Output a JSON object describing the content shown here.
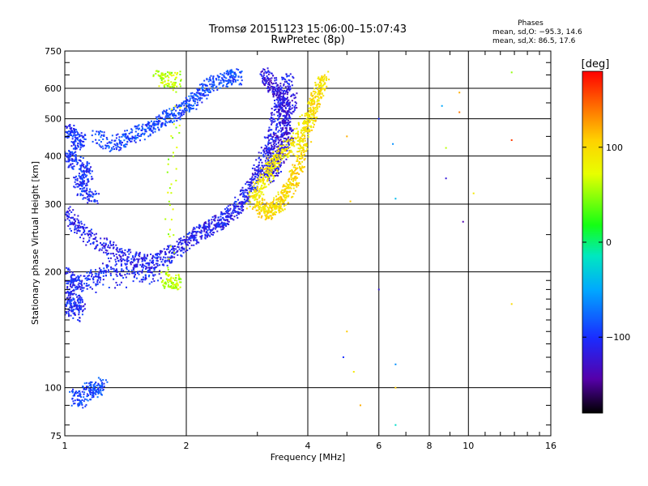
{
  "chart_data": {
    "type": "scatter",
    "title": "Tromsø 20151123 15:06:00–15:07:43",
    "subtitle": "RwPretec (8p)",
    "xlabel": "Frequency [MHz]",
    "ylabel": "Stationary phase Virtual Height [km]",
    "x_scale": "log",
    "y_scale": "log",
    "xlim": [
      1,
      16
    ],
    "ylim": [
      75,
      750
    ],
    "x_ticks": [
      1,
      2,
      4,
      6,
      8,
      10,
      16
    ],
    "x_tick_labels": [
      "1",
      "2",
      "4",
      "6",
      "8",
      "10",
      "16"
    ],
    "y_ticks": [
      75,
      100,
      200,
      300,
      400,
      500,
      600,
      750
    ],
    "y_tick_labels": [
      "75",
      "100",
      "200",
      "300",
      "400",
      "500",
      "600",
      "750"
    ],
    "grid": true,
    "phase_box": {
      "title": "Phases",
      "line_o": "mean, sd,O: −95.3, 14.6",
      "line_x": "mean, sd,X:  86.5, 17.6"
    },
    "colorbar": {
      "label": "[deg]",
      "range": [
        -180,
        180
      ],
      "ticks": [
        100,
        0,
        -100
      ],
      "tick_labels": [
        "100",
        "0",
        "−100"
      ]
    },
    "traces": [
      {
        "phase": -100,
        "points": [
          [
            1.0,
            470
          ],
          [
            1.05,
            455
          ],
          [
            1.1,
            440
          ],
          [
            1.05,
            410
          ],
          [
            1.0,
            390
          ],
          [
            1.1,
            380
          ],
          [
            1.15,
            360
          ],
          [
            1.08,
            340
          ],
          [
            1.12,
            320
          ],
          [
            1.2,
            305
          ]
        ]
      },
      {
        "phase": -110,
        "points": [
          [
            1.0,
            290
          ],
          [
            1.05,
            270
          ],
          [
            1.1,
            255
          ],
          [
            1.2,
            240
          ],
          [
            1.3,
            228
          ],
          [
            1.4,
            220
          ],
          [
            1.5,
            215
          ],
          [
            1.6,
            212
          ],
          [
            1.7,
            214
          ],
          [
            1.8,
            220
          ],
          [
            1.9,
            228
          ],
          [
            2.0,
            238
          ],
          [
            2.1,
            248
          ],
          [
            2.2,
            255
          ],
          [
            2.3,
            262
          ],
          [
            2.4,
            268
          ],
          [
            2.5,
            275
          ],
          [
            2.6,
            285
          ],
          [
            2.7,
            298
          ],
          [
            2.8,
            315
          ],
          [
            2.9,
            335
          ],
          [
            3.0,
            360
          ],
          [
            3.1,
            390
          ],
          [
            3.2,
            430
          ],
          [
            3.3,
            480
          ],
          [
            3.4,
            540
          ],
          [
            3.5,
            600
          ],
          [
            3.6,
            640
          ]
        ]
      },
      {
        "phase": -105,
        "points": [
          [
            1.0,
            200
          ],
          [
            1.05,
            190
          ],
          [
            1.1,
            185
          ],
          [
            1.2,
            196
          ],
          [
            1.3,
            205
          ],
          [
            1.5,
            200
          ],
          [
            1.7,
            195
          ],
          [
            1.0,
            180
          ],
          [
            1.05,
            170
          ],
          [
            1.1,
            165
          ],
          [
            1.0,
            160
          ],
          [
            1.1,
            155
          ]
        ]
      },
      {
        "phase": -90,
        "points": [
          [
            1.2,
            450
          ],
          [
            1.3,
            430
          ],
          [
            1.4,
            440
          ],
          [
            1.5,
            455
          ],
          [
            1.6,
            470
          ],
          [
            1.7,
            490
          ],
          [
            1.8,
            505
          ],
          [
            1.9,
            520
          ],
          [
            2.0,
            540
          ],
          [
            2.1,
            560
          ],
          [
            2.2,
            585
          ],
          [
            2.3,
            615
          ],
          [
            2.5,
            630
          ],
          [
            2.6,
            645
          ],
          [
            2.7,
            640
          ]
        ]
      },
      {
        "phase": -120,
        "points": [
          [
            3.1,
            650
          ],
          [
            3.2,
            630
          ],
          [
            3.3,
            600
          ],
          [
            3.4,
            570
          ],
          [
            3.5,
            540
          ],
          [
            3.5,
            500
          ],
          [
            3.6,
            460
          ],
          [
            3.5,
            420
          ],
          [
            3.4,
            390
          ],
          [
            3.3,
            370
          ],
          [
            3.2,
            355
          ],
          [
            3.3,
            410
          ],
          [
            3.4,
            450
          ],
          [
            3.6,
            520
          ],
          [
            3.7,
            580
          ]
        ]
      },
      {
        "phase": 100,
        "points": [
          [
            3.0,
            300
          ],
          [
            3.1,
            290
          ],
          [
            3.2,
            285
          ],
          [
            3.3,
            290
          ],
          [
            3.4,
            300
          ],
          [
            3.5,
            315
          ],
          [
            3.6,
            330
          ],
          [
            3.7,
            350
          ],
          [
            3.8,
            380
          ],
          [
            3.9,
            420
          ],
          [
            4.0,
            470
          ],
          [
            4.1,
            520
          ],
          [
            4.2,
            570
          ],
          [
            4.3,
            610
          ],
          [
            4.4,
            640
          ]
        ]
      },
      {
        "phase": 90,
        "points": [
          [
            2.9,
            305
          ],
          [
            3.0,
            325
          ],
          [
            3.1,
            345
          ],
          [
            3.2,
            365
          ],
          [
            3.3,
            385
          ],
          [
            3.4,
            400
          ],
          [
            3.6,
            420
          ],
          [
            3.8,
            450
          ],
          [
            4.0,
            500
          ],
          [
            4.2,
            560
          ]
        ]
      },
      {
        "phase": -90,
        "points": [
          [
            1.05,
            95
          ],
          [
            1.1,
            92
          ],
          [
            1.15,
            100
          ],
          [
            1.2,
            98
          ],
          [
            1.25,
            103
          ]
        ]
      },
      {
        "phase": 60,
        "points": [
          [
            1.7,
            640
          ],
          [
            1.8,
            630
          ],
          [
            1.9,
            635
          ],
          [
            1.8,
            190
          ],
          [
            1.9,
            188
          ],
          [
            1.75,
            192
          ]
        ]
      }
    ],
    "scattered": [
      {
        "f": 5.0,
        "h": 140,
        "phase": 110
      },
      {
        "f": 4.9,
        "h": 120,
        "phase": -100
      },
      {
        "f": 5.2,
        "h": 110,
        "phase": 90
      },
      {
        "f": 6.0,
        "h": 500,
        "phase": -100
      },
      {
        "f": 6.0,
        "h": 180,
        "phase": -120
      },
      {
        "f": 6.5,
        "h": 430,
        "phase": -60
      },
      {
        "f": 6.6,
        "h": 310,
        "phase": -40
      },
      {
        "f": 6.6,
        "h": 115,
        "phase": -60
      },
      {
        "f": 6.6,
        "h": 100,
        "phase": 110
      },
      {
        "f": 6.6,
        "h": 80,
        "phase": -20
      },
      {
        "f": 8.6,
        "h": 540,
        "phase": -50
      },
      {
        "f": 8.8,
        "h": 420,
        "phase": 60
      },
      {
        "f": 8.8,
        "h": 350,
        "phase": -120
      },
      {
        "f": 9.5,
        "h": 585,
        "phase": 120
      },
      {
        "f": 9.5,
        "h": 520,
        "phase": 140
      },
      {
        "f": 9.7,
        "h": 270,
        "phase": -140
      },
      {
        "f": 10.3,
        "h": 320,
        "phase": 90
      },
      {
        "f": 12.8,
        "h": 660,
        "phase": 50
      },
      {
        "f": 12.8,
        "h": 440,
        "phase": 160
      },
      {
        "f": 12.8,
        "h": 165,
        "phase": 100
      },
      {
        "f": 5.0,
        "h": 450,
        "phase": 120
      },
      {
        "f": 5.1,
        "h": 305,
        "phase": 110
      },
      {
        "f": 5.4,
        "h": 90,
        "phase": 120
      }
    ]
  }
}
